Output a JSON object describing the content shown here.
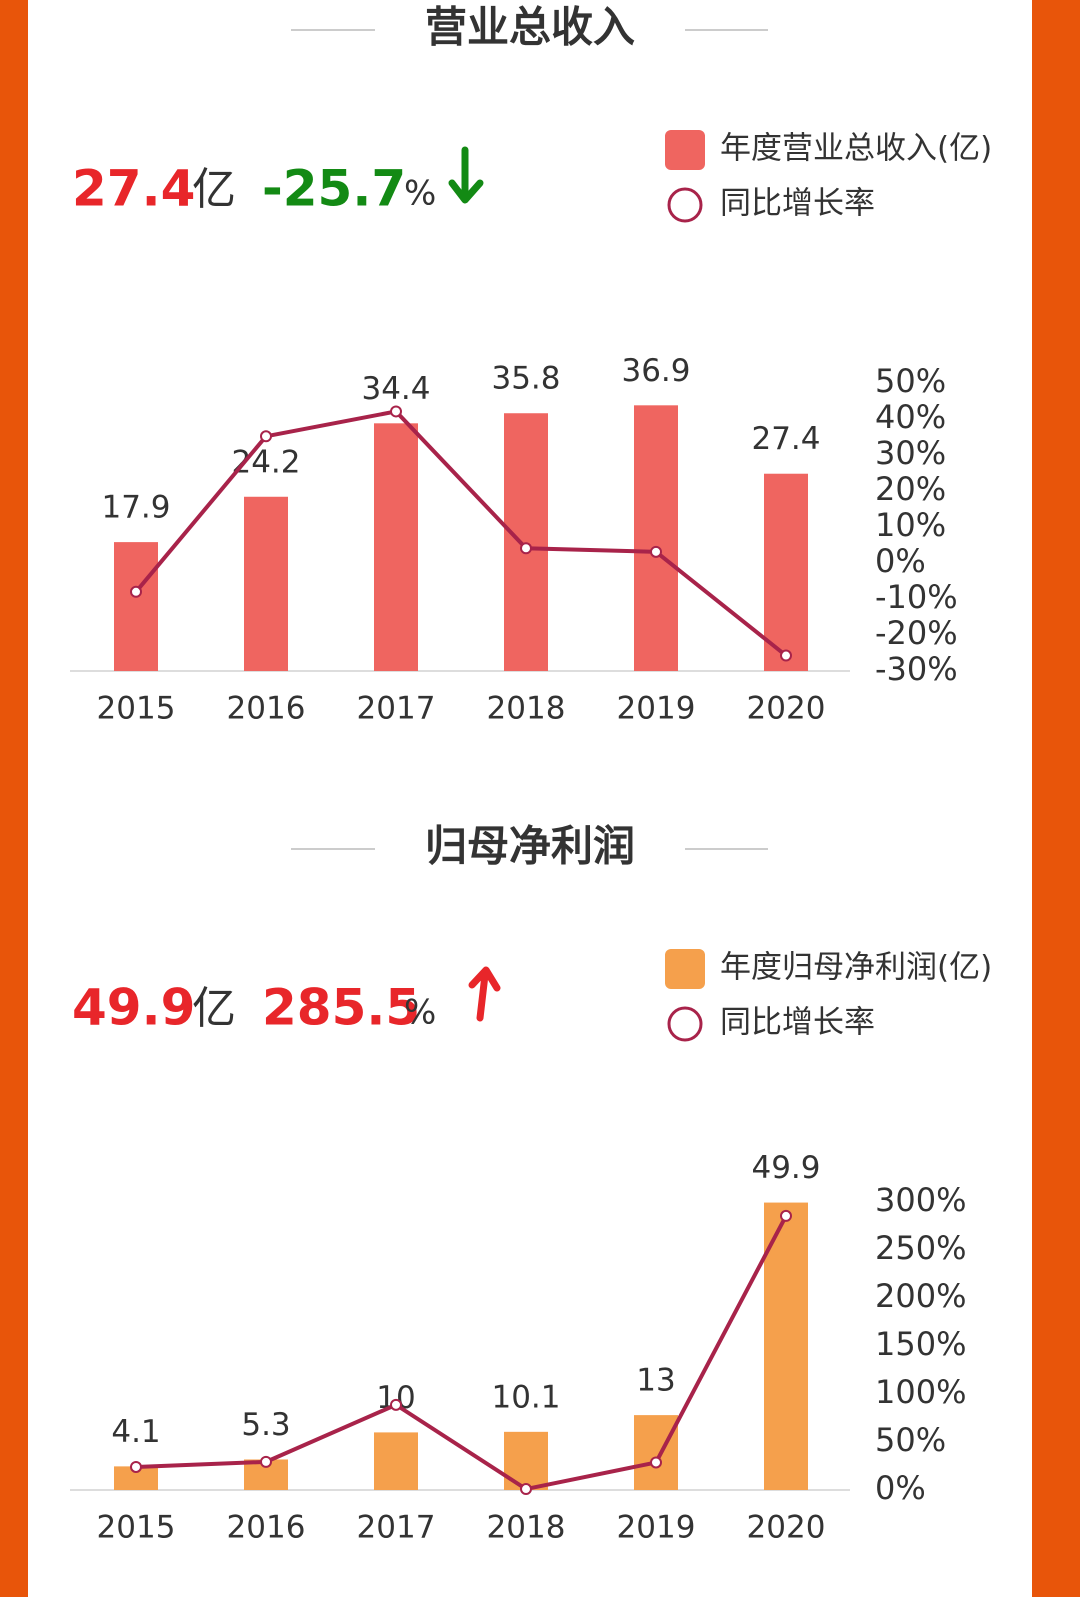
{
  "chart_data": [
    {
      "type": "bar-line",
      "title": "营业总收入",
      "headline": {
        "value": 27.4,
        "unit": "亿",
        "change": -25.7,
        "change_unit": "%",
        "change_color": "#138a14"
      },
      "categories": [
        "2015",
        "2016",
        "2017",
        "2018",
        "2019",
        "2020"
      ],
      "series": [
        {
          "name": "年度营业总收入(亿)",
          "type": "bar",
          "color": "#ef6560",
          "values": [
            17.9,
            24.2,
            34.4,
            35.8,
            36.9,
            27.4
          ]
        },
        {
          "name": "同比增长率",
          "type": "line",
          "axis": "y2",
          "color": "#a8234a",
          "values": [
            -8,
            35.2,
            42.1,
            4.1,
            3.1,
            -25.7
          ]
        }
      ],
      "ylim": [
        0,
        40
      ],
      "y2lim": [
        -30,
        50
      ],
      "y2ticks": [
        {
          "value": 50,
          "label": "50%"
        },
        {
          "value": 40,
          "label": "40%"
        },
        {
          "value": 30,
          "label": "30%"
        },
        {
          "value": 20,
          "label": "20%"
        },
        {
          "value": 10,
          "label": "10%"
        },
        {
          "value": 0,
          "label": "0%"
        },
        {
          "value": -10,
          "label": "-10%"
        },
        {
          "value": -20,
          "label": "-20%"
        },
        {
          "value": -30,
          "label": "-30%"
        }
      ]
    },
    {
      "type": "bar-line",
      "title": "归母净利润",
      "headline": {
        "value": 49.9,
        "unit": "亿",
        "change": 285.5,
        "change_unit": "%",
        "change_color": "#e8262a"
      },
      "categories": [
        "2015",
        "2016",
        "2017",
        "2018",
        "2019",
        "2020"
      ],
      "series": [
        {
          "name": "年度归母净利润(亿)",
          "type": "bar",
          "color": "#f5a04c",
          "values": [
            4.1,
            5.3,
            10,
            10.1,
            13,
            49.9
          ]
        },
        {
          "name": "同比增长率",
          "type": "line",
          "axis": "y2",
          "color": "#a8234a",
          "values": [
            24,
            29.3,
            88.7,
            1,
            28.7,
            285.5
          ]
        }
      ],
      "ylim": [
        0,
        50
      ],
      "y2lim": [
        0,
        300
      ],
      "y2ticks": [
        {
          "value": 300,
          "label": "300%"
        },
        {
          "value": 250,
          "label": "250%"
        },
        {
          "value": 200,
          "label": "200%"
        },
        {
          "value": 150,
          "label": "150%"
        },
        {
          "value": 100,
          "label": "100%"
        },
        {
          "value": 50,
          "label": "50%"
        },
        {
          "value": 0,
          "label": "0%"
        }
      ]
    }
  ]
}
